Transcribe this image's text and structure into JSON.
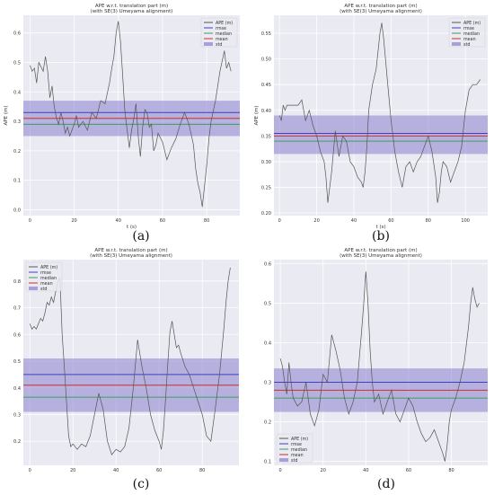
{
  "chart_data": [
    {
      "type": "line",
      "caption": "(a)",
      "title": "APE w.r.t. translation part (m)",
      "subtitle": "(with SE(3) Umeyama alignment)",
      "xlabel": "t (s)",
      "ylabel": "APE (m)",
      "xlim": [
        -3,
        95
      ],
      "ylim": [
        -0.02,
        0.66
      ],
      "xticks": [
        0,
        20,
        40,
        60,
        80
      ],
      "xticklabels": [
        "0",
        "20",
        "40",
        "60",
        "80"
      ],
      "yticks": [
        0.0,
        0.1,
        0.2,
        0.3,
        0.4,
        0.5,
        0.6
      ],
      "yticklabels": [
        "0.0",
        "0.1",
        "0.2",
        "0.3",
        "0.4",
        "0.5",
        "0.6"
      ],
      "legend_position": "top-right",
      "legend": [
        "APE (m)",
        "rmse",
        "median",
        "mean",
        "std"
      ],
      "stats": {
        "rmse": 0.33,
        "median": 0.29,
        "mean": 0.31,
        "std_lower": 0.25,
        "std_upper": 0.37
      },
      "series": [
        {
          "name": "APE (m)",
          "x": [
            0,
            1,
            2,
            3,
            4,
            6,
            7,
            8,
            9,
            10,
            11,
            12,
            13,
            14,
            15,
            16,
            17,
            18,
            19,
            20,
            21,
            22,
            24,
            26,
            28,
            30,
            32,
            34,
            36,
            37,
            38,
            39,
            40,
            41,
            42,
            43,
            44,
            45,
            46,
            47,
            48,
            49,
            50,
            51,
            52,
            53,
            54,
            55,
            56,
            57,
            58,
            60,
            62,
            64,
            66,
            68,
            70,
            72,
            74,
            75,
            76,
            77,
            78,
            79,
            80,
            81,
            82,
            84,
            86,
            88,
            89,
            90,
            91
          ],
          "y": [
            0.49,
            0.47,
            0.48,
            0.43,
            0.5,
            0.47,
            0.52,
            0.47,
            0.38,
            0.42,
            0.35,
            0.31,
            0.29,
            0.33,
            0.3,
            0.26,
            0.28,
            0.25,
            0.27,
            0.29,
            0.32,
            0.28,
            0.3,
            0.27,
            0.33,
            0.31,
            0.37,
            0.36,
            0.43,
            0.48,
            0.52,
            0.6,
            0.64,
            0.57,
            0.45,
            0.33,
            0.27,
            0.21,
            0.27,
            0.31,
            0.36,
            0.25,
            0.18,
            0.28,
            0.34,
            0.33,
            0.28,
            0.29,
            0.2,
            0.22,
            0.26,
            0.23,
            0.17,
            0.21,
            0.24,
            0.29,
            0.33,
            0.29,
            0.22,
            0.14,
            0.09,
            0.06,
            0.01,
            0.08,
            0.15,
            0.24,
            0.3,
            0.37,
            0.47,
            0.54,
            0.48,
            0.5,
            0.47
          ]
        }
      ]
    },
    {
      "type": "line",
      "caption": "(b)",
      "title": "APE w.r.t. translation part (m)",
      "subtitle": "(with SE(3) Umeyama alignment)",
      "xlabel": "t (s)",
      "ylabel": "APE (m)",
      "xlim": [
        -3,
        112
      ],
      "ylim": [
        0.195,
        0.585
      ],
      "xticks": [
        0,
        20,
        40,
        60,
        80,
        100
      ],
      "xticklabels": [
        "0",
        "20",
        "40",
        "60",
        "80",
        "100"
      ],
      "yticks": [
        0.2,
        0.25,
        0.3,
        0.35,
        0.4,
        0.45,
        0.5,
        0.55
      ],
      "yticklabels": [
        "0.20",
        "0.25",
        "0.30",
        "0.35",
        "0.40",
        "0.45",
        "0.50",
        "0.55"
      ],
      "legend_position": "top-right",
      "legend": [
        "APE (m)",
        "rmse",
        "median",
        "mean",
        "std"
      ],
      "stats": {
        "rmse": 0.355,
        "median": 0.34,
        "mean": 0.35,
        "std_lower": 0.315,
        "std_upper": 0.39
      },
      "series": [
        {
          "name": "APE (m)",
          "x": [
            0,
            1,
            2,
            3,
            4,
            6,
            8,
            10,
            12,
            14,
            16,
            18,
            20,
            22,
            24,
            25,
            26,
            28,
            30,
            32,
            34,
            36,
            38,
            40,
            42,
            44,
            45,
            46,
            47,
            48,
            50,
            52,
            54,
            55,
            56,
            57,
            58,
            59,
            60,
            61,
            62,
            63,
            64,
            66,
            68,
            70,
            72,
            74,
            76,
            78,
            80,
            82,
            84,
            85,
            86,
            87,
            88,
            90,
            92,
            94,
            96,
            98,
            100,
            102,
            104,
            106,
            108
          ],
          "y": [
            0.39,
            0.38,
            0.41,
            0.4,
            0.41,
            0.41,
            0.41,
            0.41,
            0.42,
            0.38,
            0.4,
            0.37,
            0.35,
            0.32,
            0.3,
            0.27,
            0.22,
            0.28,
            0.36,
            0.31,
            0.35,
            0.34,
            0.3,
            0.29,
            0.27,
            0.26,
            0.25,
            0.28,
            0.33,
            0.4,
            0.45,
            0.48,
            0.55,
            0.57,
            0.54,
            0.5,
            0.46,
            0.42,
            0.38,
            0.35,
            0.32,
            0.3,
            0.28,
            0.25,
            0.29,
            0.3,
            0.28,
            0.3,
            0.31,
            0.33,
            0.35,
            0.32,
            0.27,
            0.22,
            0.24,
            0.28,
            0.3,
            0.29,
            0.26,
            0.28,
            0.3,
            0.33,
            0.4,
            0.44,
            0.45,
            0.45,
            0.46
          ]
        }
      ]
    },
    {
      "type": "line",
      "caption": "(c)",
      "title": "APE w.r.t. translation part (m)",
      "subtitle": "(with SE(3) Umeyama alignment)",
      "xlabel": "t (s)",
      "ylabel": "",
      "xlim": [
        -3,
        97
      ],
      "ylim": [
        0.11,
        0.88
      ],
      "xticks": [
        0,
        20,
        40,
        60,
        80
      ],
      "xticklabels": [
        "0",
        "20",
        "40",
        "60",
        "80"
      ],
      "yticks": [
        0.2,
        0.3,
        0.4,
        0.5,
        0.6,
        0.7,
        0.8
      ],
      "yticklabels": [
        "0.2",
        "0.3",
        "0.4",
        "0.5",
        "0.6",
        "0.7",
        "0.8"
      ],
      "legend_position": "top-left",
      "legend": [
        "APE (m)",
        "rmse",
        "median",
        "mean",
        "std"
      ],
      "stats": {
        "rmse": 0.45,
        "median": 0.365,
        "mean": 0.41,
        "std_lower": 0.31,
        "std_upper": 0.51
      },
      "series": [
        {
          "name": "APE (m)",
          "x": [
            0,
            1,
            2,
            3,
            4,
            5,
            6,
            7,
            8,
            9,
            10,
            11,
            12,
            13,
            14,
            15,
            16,
            17,
            18,
            19,
            20,
            22,
            24,
            26,
            28,
            30,
            32,
            34,
            36,
            38,
            40,
            42,
            44,
            46,
            48,
            50,
            52,
            54,
            56,
            58,
            60,
            61,
            62,
            63,
            64,
            65,
            66,
            67,
            68,
            69,
            70,
            72,
            74,
            76,
            78,
            80,
            82,
            84,
            86,
            88,
            90,
            91,
            92,
            93
          ],
          "y": [
            0.64,
            0.62,
            0.63,
            0.62,
            0.64,
            0.66,
            0.65,
            0.68,
            0.72,
            0.71,
            0.74,
            0.72,
            0.76,
            0.8,
            0.81,
            0.6,
            0.48,
            0.35,
            0.22,
            0.18,
            0.19,
            0.17,
            0.19,
            0.18,
            0.22,
            0.3,
            0.38,
            0.32,
            0.2,
            0.15,
            0.17,
            0.16,
            0.18,
            0.25,
            0.4,
            0.58,
            0.48,
            0.4,
            0.3,
            0.24,
            0.2,
            0.17,
            0.24,
            0.36,
            0.49,
            0.61,
            0.65,
            0.6,
            0.55,
            0.56,
            0.53,
            0.48,
            0.45,
            0.4,
            0.35,
            0.3,
            0.22,
            0.2,
            0.32,
            0.45,
            0.62,
            0.72,
            0.8,
            0.85
          ]
        }
      ]
    },
    {
      "type": "line",
      "caption": "(d)",
      "title": "APE w.r.t. translation part (m)",
      "subtitle": "(with SE(3) Umeyama alignment)",
      "xlabel": "t (s)",
      "ylabel": "",
      "xlim": [
        -3,
        97
      ],
      "ylim": [
        0.09,
        0.61
      ],
      "xticks": [
        0,
        20,
        40,
        60,
        80
      ],
      "xticklabels": [
        "0",
        "20",
        "40",
        "60",
        "80"
      ],
      "yticks": [
        0.1,
        0.2,
        0.3,
        0.4,
        0.5,
        0.6
      ],
      "yticklabels": [
        "0.1",
        "0.2",
        "0.3",
        "0.4",
        "0.5",
        "0.6"
      ],
      "legend_position": "bottom-left",
      "legend": [
        "APE (m)",
        "rmse",
        "median",
        "mean",
        "std"
      ],
      "stats": {
        "rmse": 0.3,
        "median": 0.26,
        "mean": 0.28,
        "std_lower": 0.225,
        "std_upper": 0.335
      },
      "series": [
        {
          "name": "APE (m)",
          "x": [
            0,
            1,
            2,
            3,
            4,
            5,
            6,
            8,
            10,
            12,
            14,
            16,
            18,
            20,
            22,
            24,
            26,
            28,
            30,
            32,
            34,
            36,
            38,
            39,
            40,
            41,
            42,
            43,
            44,
            46,
            48,
            50,
            52,
            54,
            56,
            58,
            60,
            62,
            64,
            66,
            68,
            70,
            72,
            74,
            76,
            77,
            78,
            79,
            80,
            82,
            84,
            86,
            88,
            89,
            90,
            91,
            92,
            93
          ],
          "y": [
            0.36,
            0.34,
            0.3,
            0.27,
            0.35,
            0.3,
            0.26,
            0.24,
            0.25,
            0.3,
            0.22,
            0.19,
            0.23,
            0.32,
            0.3,
            0.42,
            0.38,
            0.33,
            0.26,
            0.22,
            0.25,
            0.3,
            0.43,
            0.5,
            0.58,
            0.5,
            0.38,
            0.3,
            0.25,
            0.27,
            0.22,
            0.25,
            0.28,
            0.22,
            0.2,
            0.23,
            0.26,
            0.24,
            0.2,
            0.17,
            0.15,
            0.16,
            0.18,
            0.15,
            0.12,
            0.1,
            0.14,
            0.2,
            0.23,
            0.26,
            0.3,
            0.35,
            0.44,
            0.5,
            0.54,
            0.51,
            0.49,
            0.5
          ]
        }
      ]
    }
  ]
}
